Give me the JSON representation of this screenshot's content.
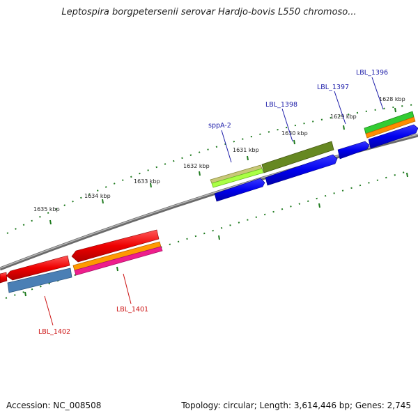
{
  "title": "Leptospira borgpetersenii serovar Hardjo-bovis L550 chromoso...",
  "accession": "Accession: NC_008508",
  "topology": "Topology: circular; Length: 3,614,446 bp; Genes: 2,745",
  "ticks": [
    "1635 kbp",
    "1634 kbp",
    "1633 kbp",
    "1632 kbp",
    "1631 kbp",
    "1630 kbp",
    "1629 kbp",
    "1628 kbp"
  ],
  "gene_labels": {
    "lbl1396": "LBL_1396",
    "lbl1397": "LBL_1397",
    "lbl1398": "LBL_1398",
    "sppA2": "sppA-2",
    "lbl1401": "LBL_1401",
    "lbl1402": "LBL_1402"
  },
  "colors": {
    "forward_label": "#1a1aa8",
    "reverse_label": "#cc1111",
    "tick": "#1e7a1e",
    "backbone": "#888888"
  }
}
